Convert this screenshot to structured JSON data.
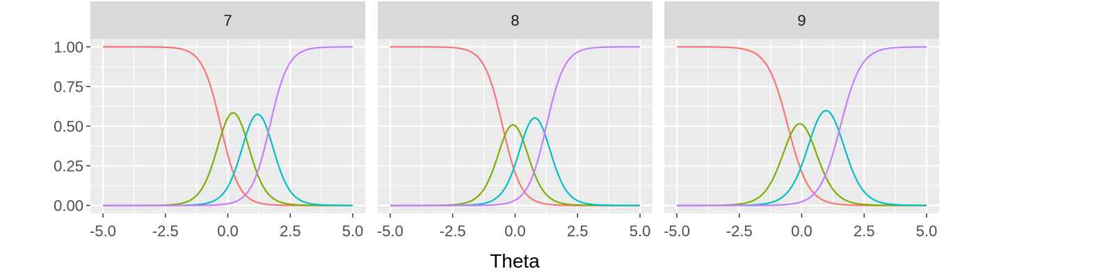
{
  "chart_data": {
    "type": "line",
    "xlabel": "Theta",
    "ylabel": "",
    "xlim": [
      -5.5,
      5.5
    ],
    "ylim": [
      -0.05,
      1.05
    ],
    "x_ticks": [
      -5.0,
      -2.5,
      0.0,
      2.5,
      5.0
    ],
    "x_tick_labels": [
      "-5.0",
      "-2.5",
      "0.0",
      "2.5",
      "5.0"
    ],
    "y_ticks": [
      0,
      0.25,
      0.5,
      0.75,
      1.0
    ],
    "y_tick_labels": [
      "0.00",
      "0.25",
      "0.50",
      "0.75",
      "1.00"
    ],
    "grid": true,
    "panel_background": "#ebebeb",
    "strip_background": "#d9d9d9",
    "series_colors": [
      "#f8766d",
      "#7cae00",
      "#00bfc4",
      "#c77cff"
    ],
    "facets": [
      {
        "label": "7",
        "a": 2.7,
        "b": [
          -0.28,
          0.71,
          1.68
        ]
      },
      {
        "label": "8",
        "a": 2.7,
        "b": [
          -0.5,
          0.33,
          1.25
        ]
      },
      {
        "label": "9",
        "a": 2.4,
        "b": [
          -0.55,
          0.4,
          1.55
        ]
      }
    ]
  }
}
